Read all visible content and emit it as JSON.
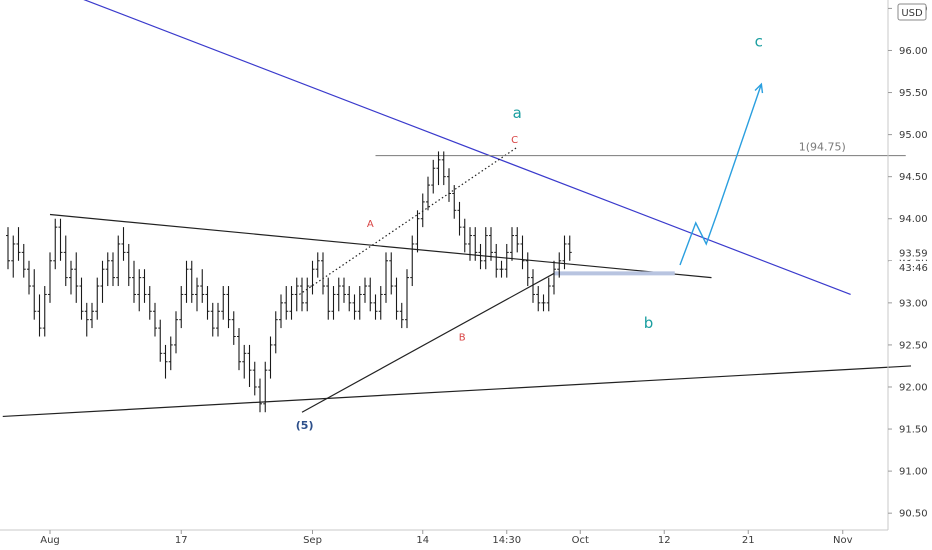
{
  "chart_data": {
    "type": "line",
    "title": "",
    "xlabel": "",
    "ylabel": "",
    "currency": "USD",
    "ylim": [
      90.3,
      96.6
    ],
    "y_ticks": [
      "90.50",
      "91.00",
      "91.50",
      "92.00",
      "92.50",
      "93.00",
      "93.50",
      "94.00",
      "94.50",
      "95.00",
      "95.50",
      "96.00",
      "96.50"
    ],
    "x_ticks": [
      {
        "label": "Aug",
        "bar": 8
      },
      {
        "label": "17",
        "bar": 33
      },
      {
        "label": "Sep",
        "bar": 58
      },
      {
        "label": "14",
        "bar": 79
      },
      {
        "label": "14:30",
        "bar": 95
      },
      {
        "label": "Oct",
        "bar": 109
      },
      {
        "label": "12",
        "bar": 125
      },
      {
        "label": "21",
        "bar": 141
      },
      {
        "label": "Nov",
        "bar": 159
      }
    ],
    "price_labels": [
      {
        "text": "93.59",
        "value": 93.59
      },
      {
        "text": "43:46",
        "value": 93.42
      }
    ],
    "series": [
      {
        "type": "ohlc",
        "color": "#1a1a1a",
        "bars": [
          [
            93.8,
            93.9,
            93.4,
            93.5
          ],
          [
            93.5,
            93.8,
            93.3,
            93.7
          ],
          [
            93.7,
            93.9,
            93.5,
            93.6
          ],
          [
            93.6,
            93.7,
            93.3,
            93.4
          ],
          [
            93.4,
            93.5,
            93.1,
            93.2
          ],
          [
            93.2,
            93.4,
            92.8,
            92.9
          ],
          [
            92.9,
            93.1,
            92.6,
            92.7
          ],
          [
            92.7,
            93.2,
            92.6,
            93.1
          ],
          [
            93.1,
            93.6,
            93.0,
            93.5
          ],
          [
            93.5,
            94.0,
            93.4,
            93.9
          ],
          [
            93.9,
            94.0,
            93.5,
            93.6
          ],
          [
            93.6,
            93.8,
            93.2,
            93.3
          ],
          [
            93.3,
            93.5,
            93.1,
            93.4
          ],
          [
            93.4,
            93.6,
            93.0,
            93.2
          ],
          [
            93.2,
            93.3,
            92.8,
            92.9
          ],
          [
            92.9,
            93.0,
            92.6,
            92.8
          ],
          [
            92.8,
            93.0,
            92.7,
            92.9
          ],
          [
            92.9,
            93.3,
            92.8,
            93.2
          ],
          [
            93.2,
            93.5,
            93.0,
            93.4
          ],
          [
            93.4,
            93.6,
            93.2,
            93.5
          ],
          [
            93.5,
            93.6,
            93.2,
            93.3
          ],
          [
            93.3,
            93.8,
            93.2,
            93.7
          ],
          [
            93.7,
            93.9,
            93.5,
            93.6
          ],
          [
            93.6,
            93.7,
            93.2,
            93.3
          ],
          [
            93.3,
            93.5,
            93.0,
            93.1
          ],
          [
            93.1,
            93.4,
            92.9,
            93.3
          ],
          [
            93.3,
            93.4,
            93.0,
            93.1
          ],
          [
            93.1,
            93.2,
            92.8,
            92.9
          ],
          [
            92.9,
            93.0,
            92.6,
            92.7
          ],
          [
            92.7,
            92.8,
            92.3,
            92.4
          ],
          [
            92.4,
            92.5,
            92.1,
            92.3
          ],
          [
            92.3,
            92.6,
            92.2,
            92.5
          ],
          [
            92.5,
            92.9,
            92.4,
            92.8
          ],
          [
            92.8,
            93.2,
            92.7,
            93.1
          ],
          [
            93.1,
            93.5,
            93.0,
            93.4
          ],
          [
            93.4,
            93.5,
            93.0,
            93.1
          ],
          [
            93.1,
            93.3,
            92.9,
            93.2
          ],
          [
            93.2,
            93.4,
            93.0,
            93.1
          ],
          [
            93.1,
            93.2,
            92.8,
            92.9
          ],
          [
            92.9,
            93.0,
            92.6,
            92.7
          ],
          [
            92.7,
            93.0,
            92.6,
            92.9
          ],
          [
            92.9,
            93.2,
            92.8,
            93.1
          ],
          [
            93.1,
            93.2,
            92.7,
            92.8
          ],
          [
            92.8,
            92.9,
            92.5,
            92.6
          ],
          [
            92.6,
            92.7,
            92.2,
            92.3
          ],
          [
            92.3,
            92.5,
            92.1,
            92.4
          ],
          [
            92.4,
            92.5,
            92.0,
            92.2
          ],
          [
            92.2,
            92.3,
            91.9,
            92.0
          ],
          [
            92.0,
            92.1,
            91.7,
            91.8
          ],
          [
            91.8,
            92.3,
            91.7,
            92.2
          ],
          [
            92.2,
            92.6,
            92.1,
            92.5
          ],
          [
            92.5,
            92.9,
            92.4,
            92.8
          ],
          [
            92.8,
            93.1,
            92.7,
            93.0
          ],
          [
            93.0,
            93.2,
            92.8,
            92.9
          ],
          [
            92.9,
            93.2,
            92.8,
            93.1
          ],
          [
            93.1,
            93.3,
            92.9,
            93.2
          ],
          [
            93.2,
            93.3,
            92.9,
            93.0
          ],
          [
            93.0,
            93.3,
            92.9,
            93.2
          ],
          [
            93.2,
            93.5,
            93.1,
            93.4
          ],
          [
            93.4,
            93.6,
            93.3,
            93.5
          ],
          [
            93.5,
            93.6,
            93.1,
            93.2
          ],
          [
            93.2,
            93.3,
            92.8,
            92.9
          ],
          [
            92.9,
            93.2,
            92.8,
            93.1
          ],
          [
            93.1,
            93.3,
            92.9,
            93.2
          ],
          [
            93.2,
            93.3,
            93.0,
            93.1
          ],
          [
            93.1,
            93.2,
            92.9,
            93.0
          ],
          [
            93.0,
            93.1,
            92.8,
            92.9
          ],
          [
            92.9,
            93.2,
            92.8,
            93.1
          ],
          [
            93.1,
            93.3,
            93.0,
            93.2
          ],
          [
            93.2,
            93.3,
            92.9,
            93.0
          ],
          [
            93.0,
            93.1,
            92.8,
            92.9
          ],
          [
            92.9,
            93.2,
            92.8,
            93.1
          ],
          [
            93.1,
            93.6,
            93.0,
            93.5
          ],
          [
            93.5,
            93.6,
            93.1,
            93.2
          ],
          [
            93.2,
            93.3,
            92.8,
            92.9
          ],
          [
            92.9,
            93.0,
            92.7,
            92.8
          ],
          [
            92.8,
            93.4,
            92.7,
            93.3
          ],
          [
            93.3,
            93.8,
            93.2,
            93.7
          ],
          [
            93.7,
            94.1,
            93.6,
            94.0
          ],
          [
            94.0,
            94.3,
            93.9,
            94.2
          ],
          [
            94.2,
            94.5,
            94.1,
            94.4
          ],
          [
            94.4,
            94.7,
            94.3,
            94.6
          ],
          [
            94.6,
            94.8,
            94.4,
            94.7
          ],
          [
            94.7,
            94.8,
            94.4,
            94.5
          ],
          [
            94.5,
            94.6,
            94.2,
            94.3
          ],
          [
            94.3,
            94.4,
            94.0,
            94.1
          ],
          [
            94.1,
            94.2,
            93.8,
            93.9
          ],
          [
            93.9,
            94.0,
            93.6,
            93.7
          ],
          [
            93.7,
            93.9,
            93.5,
            93.8
          ],
          [
            93.8,
            93.9,
            93.5,
            93.6
          ],
          [
            93.6,
            93.7,
            93.4,
            93.5
          ],
          [
            93.5,
            93.9,
            93.4,
            93.8
          ],
          [
            93.8,
            93.9,
            93.5,
            93.6
          ],
          [
            93.6,
            93.7,
            93.3,
            93.4
          ],
          [
            93.4,
            93.5,
            93.3,
            93.4
          ],
          [
            93.4,
            93.7,
            93.3,
            93.6
          ],
          [
            93.6,
            93.9,
            93.5,
            93.8
          ],
          [
            93.8,
            93.9,
            93.6,
            93.7
          ],
          [
            93.7,
            93.8,
            93.4,
            93.5
          ],
          [
            93.5,
            93.6,
            93.2,
            93.3
          ],
          [
            93.3,
            93.4,
            93.0,
            93.1
          ],
          [
            93.1,
            93.2,
            92.9,
            93.0
          ],
          [
            93.0,
            93.1,
            92.9,
            93.0
          ],
          [
            93.0,
            93.3,
            92.9,
            93.2
          ],
          [
            93.2,
            93.5,
            93.1,
            93.4
          ],
          [
            93.4,
            93.6,
            93.3,
            93.5
          ],
          [
            93.5,
            93.8,
            93.4,
            93.7
          ],
          [
            93.7,
            93.8,
            93.5,
            93.6
          ]
        ]
      }
    ],
    "trendlines": [
      {
        "role": "upper-resistance",
        "color": "#3a3acc",
        "points": [
          [
            10.5,
            96.7
          ],
          [
            160.5,
            93.1
          ]
        ]
      },
      {
        "role": "triangle-upper",
        "color": "#222222",
        "points": [
          [
            8,
            94.05
          ],
          [
            134,
            93.3
          ]
        ]
      },
      {
        "role": "lower-support",
        "color": "#222222",
        "points": [
          [
            -1,
            91.65
          ],
          [
            172,
            92.25
          ]
        ]
      },
      {
        "role": "rising-support",
        "color": "#222222",
        "points": [
          [
            56,
            91.7
          ],
          [
            104,
            93.35
          ]
        ]
      },
      {
        "role": "channel-dotted",
        "color": "#222222",
        "points": [
          [
            55.5,
            93.1
          ],
          [
            97,
            94.85
          ]
        ]
      },
      {
        "role": "fib-level",
        "color": "#7a7a7a",
        "points": [
          [
            70,
            94.75
          ],
          [
            171,
            94.75
          ]
        ],
        "label": "1(94.75)"
      },
      {
        "role": "support-zone",
        "color": "#b8c4e0",
        "points": [
          [
            104,
            93.35
          ],
          [
            127,
            93.35
          ]
        ]
      }
    ],
    "projection": {
      "color": "#2a9fdf",
      "points": [
        [
          128,
          93.45
        ],
        [
          131,
          93.95
        ],
        [
          133,
          93.7
        ],
        [
          135,
          94.05
        ],
        [
          143.5,
          95.6
        ]
      ]
    },
    "wave_labels": [
      {
        "text": "a",
        "x": 97,
        "y": 95.2,
        "color": "#1a9ea0"
      },
      {
        "text": "c",
        "x": 143,
        "y": 96.05,
        "color": "#1a9ea0"
      },
      {
        "text": "b",
        "x": 122,
        "y": 92.7,
        "color": "#1a9ea0"
      },
      {
        "text": "C",
        "x": 96.5,
        "y": 94.9,
        "color": "#d84343"
      },
      {
        "text": "A",
        "x": 69,
        "y": 93.9,
        "color": "#d84343"
      },
      {
        "text": "B",
        "x": 86.5,
        "y": 92.55,
        "color": "#d84343"
      },
      {
        "text": "(5)",
        "x": 56.5,
        "y": 91.5,
        "color": "#2d4f8a"
      }
    ]
  }
}
